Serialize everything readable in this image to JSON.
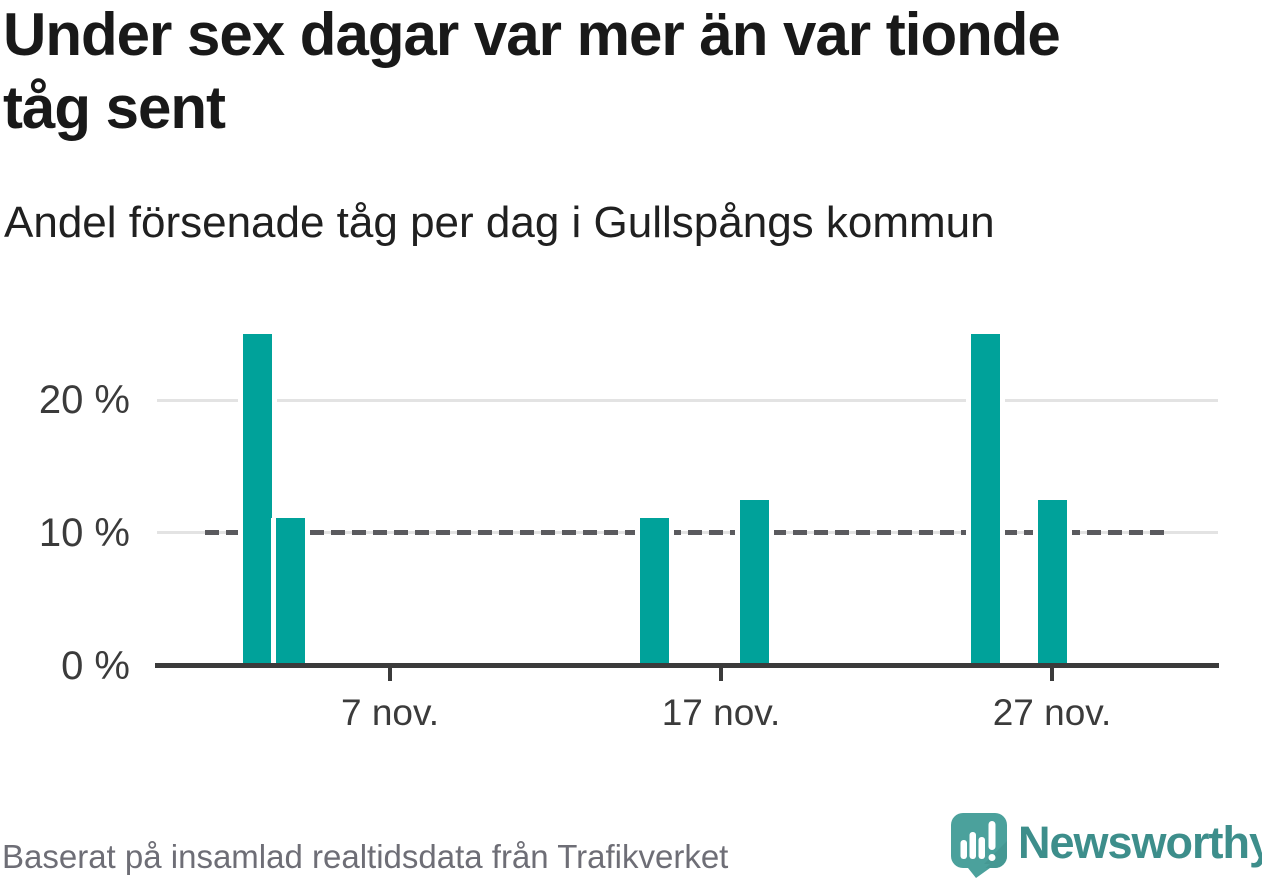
{
  "header": {
    "title": "Under sex dagar var mer än var tionde tåg sent",
    "title_lines": [
      "Under sex dagar var mer än var tionde",
      "tåg sent"
    ],
    "subtitle": "Andel försenade tåg per dag i Gullspångs kommun"
  },
  "chart_data": {
    "type": "bar",
    "title": "Under sex dagar var mer än var tionde tåg sent",
    "subtitle": "Andel försenade tåg per dag i Gullspångs kommun",
    "unit": "%",
    "categories": [
      "3 nov.",
      "4 nov.",
      "15 nov.",
      "18 nov.",
      "25 nov.",
      "27 nov."
    ],
    "values": [
      25,
      11.1,
      11.1,
      12.5,
      25,
      12.5
    ],
    "points": [
      {
        "day": 3,
        "label": "3 nov.",
        "value": 25
      },
      {
        "day": 4,
        "label": "4 nov.",
        "value": 11.1
      },
      {
        "day": 15,
        "label": "15 nov.",
        "value": 11.1
      },
      {
        "day": 18,
        "label": "18 nov.",
        "value": 12.5
      },
      {
        "day": 25,
        "label": "25 nov.",
        "value": 25
      },
      {
        "day": 27,
        "label": "27 nov.",
        "value": 12.5
      }
    ],
    "x_axis": {
      "ticks": [
        {
          "day": 7,
          "label": "7 nov."
        },
        {
          "day": 17,
          "label": "17 nov."
        },
        {
          "day": 27,
          "label": "27 nov."
        }
      ]
    },
    "y_axis": {
      "range": [
        0,
        26.8
      ],
      "ticks": [
        {
          "value": 0,
          "label": "0 %"
        },
        {
          "value": 10,
          "label": "10 %"
        },
        {
          "value": 20,
          "label": "20 %"
        }
      ]
    },
    "reference_line": {
      "value": 10,
      "style": "dashed"
    },
    "bar_color": "#00a29a",
    "grid": true,
    "legend": "none"
  },
  "footer": {
    "source": "Baserat på insamlad realtidsdata från Trafikverket",
    "brand": "Newsworthy"
  },
  "colors": {
    "bar_teal": "#00a29a",
    "axis_dark": "#3b3b3b",
    "grid_light": "#e3e3e3",
    "dash_gray": "#5a5a5e",
    "title_text": "#191919",
    "source_gray": "#6e6e76",
    "logo_teal": "#4ba19c",
    "logo_text_teal": "#3d8e8b"
  }
}
